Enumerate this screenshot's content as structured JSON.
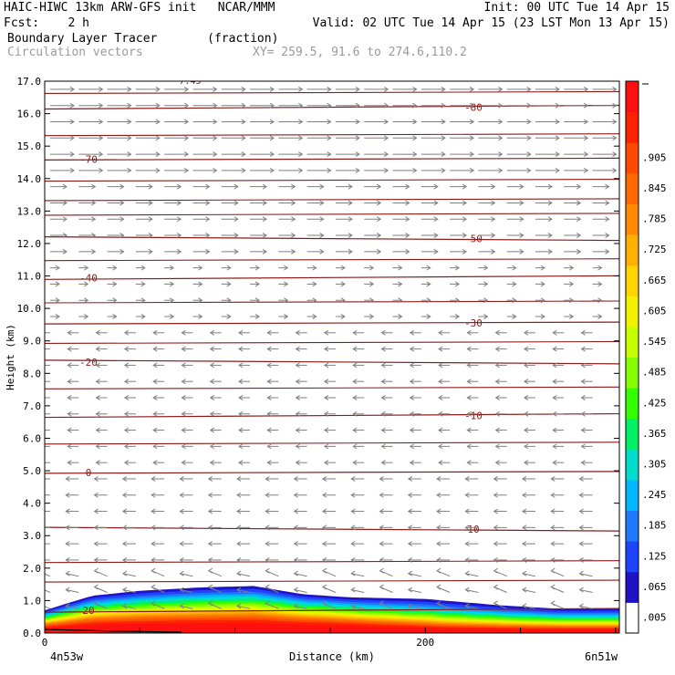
{
  "header": {
    "model_line": "HAIC-HIWC 13km ARW-GFS init   NCAR/MMM",
    "init_line": "Init: 00 UTC Tue 14 Apr 15",
    "fcst_line": "Fcst:    2 h",
    "valid_line": "Valid: 02 UTC Tue 14 Apr 15 (23 LST Mon 13 Apr 15)",
    "field_line": "Boundary Layer Tracer       (fraction)",
    "vectors_line": "Circulation vectors",
    "xy_line": "XY= 259.5, 91.6 to 274.6,110.2"
  },
  "colors": {
    "contour": "#8b1a1a",
    "vector": "#7f7f7f",
    "palette": [
      "#ffffff",
      "#1f12c7",
      "#1f44ff",
      "#1f79ff",
      "#00b7ff",
      "#00ddcc",
      "#00f066",
      "#33ff00",
      "#88ff00",
      "#c8ff00",
      "#f2f200",
      "#ffd400",
      "#ffb000",
      "#ff8a00",
      "#ff6a00",
      "#ff4a00",
      "#ff2200",
      "#ff1010"
    ]
  },
  "chart_data": {
    "type": "heatmap",
    "title": "Boundary Layer Tracer (fraction)",
    "xlabel": "Distance (km)",
    "ylabel": "Height (km)",
    "xlim": [
      0,
      302
    ],
    "ylim": [
      0.0,
      17.0
    ],
    "x_ticks": [
      "0",
      "200"
    ],
    "y_ticks": [
      "0.0",
      "1.0",
      "2.0",
      "3.0",
      "4.0",
      "5.0",
      "6.0",
      "7.0",
      "8.0",
      "9.0",
      "10.0",
      "11.0",
      "12.0",
      "13.0",
      "14.0",
      "15.0",
      "16.0",
      "17.0"
    ],
    "x_left_label": "4n53w",
    "x_right_label": "6n51w",
    "colorbar_labels": [
      ".005",
      ".065",
      ".125",
      ".185",
      ".245",
      ".305",
      ".365",
      ".425",
      ".485",
      ".545",
      ".605",
      ".665",
      ".725",
      ".785",
      ".845",
      ".905"
    ],
    "tracer_layer": [
      {
        "x": 0,
        "top_km": 0.7
      },
      {
        "x": 25,
        "top_km": 1.15
      },
      {
        "x": 50,
        "top_km": 1.3
      },
      {
        "x": 80,
        "top_km": 1.4
      },
      {
        "x": 110,
        "top_km": 1.45
      },
      {
        "x": 135,
        "top_km": 1.2
      },
      {
        "x": 160,
        "top_km": 1.1
      },
      {
        "x": 200,
        "top_km": 1.05
      },
      {
        "x": 240,
        "top_km": 0.85
      },
      {
        "x": 270,
        "top_km": 0.75
      },
      {
        "x": 302,
        "top_km": 0.75
      }
    ],
    "temperature_contours": [
      {
        "label": "20",
        "y_km": 0.7
      },
      {
        "label": "10",
        "y_km": 3.2
      },
      {
        "label": "0",
        "y_km": 4.95
      },
      {
        "label": "-10",
        "y_km": 6.7
      },
      {
        "label": "-20",
        "y_km": 8.35
      },
      {
        "label": "-30",
        "y_km": 9.55
      },
      {
        "label": "-40",
        "y_km": 10.95
      },
      {
        "label": "-50",
        "y_km": 12.15
      },
      {
        "label": "-70",
        "y_km": 14.6
      },
      {
        "label": "-80",
        "y_km": 16.2
      }
    ],
    "contour_label_top": "-7.45"
  }
}
